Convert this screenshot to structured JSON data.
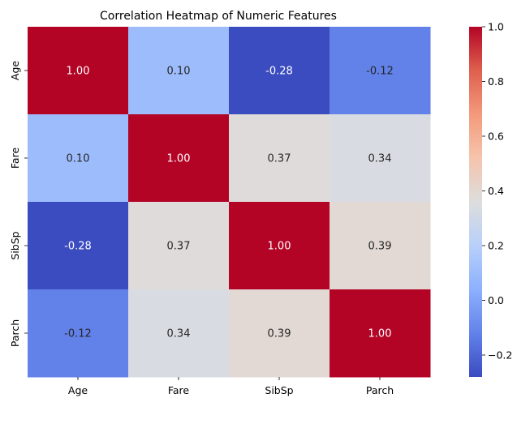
{
  "chart_data": {
    "type": "heatmap",
    "title": "Correlation Heatmap of Numeric Features",
    "x_categories": [
      "Age",
      "Fare",
      "SibSp",
      "Parch"
    ],
    "y_categories": [
      "Age",
      "Fare",
      "SibSp",
      "Parch"
    ],
    "values": [
      [
        1.0,
        0.1,
        -0.28,
        -0.12
      ],
      [
        0.1,
        1.0,
        0.37,
        0.34
      ],
      [
        -0.28,
        0.37,
        1.0,
        0.39
      ],
      [
        -0.12,
        0.34,
        0.39,
        1.0
      ]
    ],
    "annotation_format": "0.00",
    "colormap": "coolwarm",
    "colorbar": {
      "range": [
        -0.28,
        1.0
      ],
      "ticks": [
        -0.2,
        0.0,
        0.2,
        0.4,
        0.6,
        0.8,
        1.0
      ],
      "tick_labels": [
        "−0.2",
        "0.0",
        "0.2",
        "0.4",
        "0.6",
        "0.8",
        "1.0"
      ]
    }
  }
}
